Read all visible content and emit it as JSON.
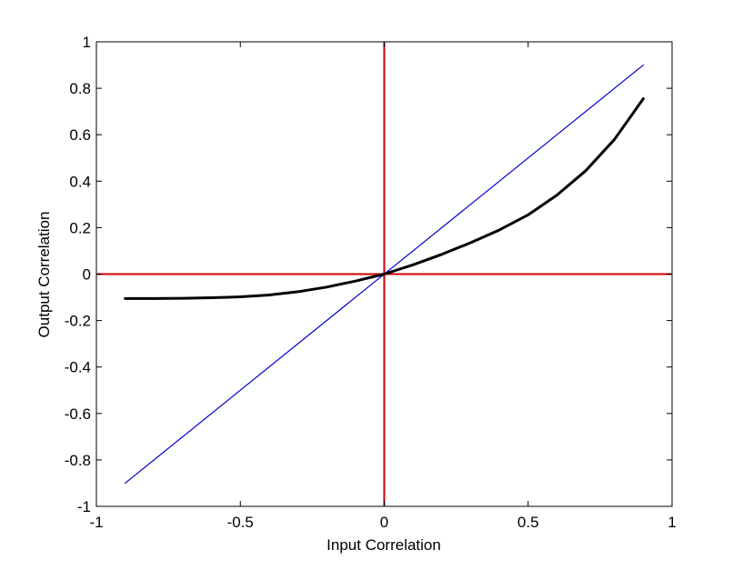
{
  "chart_data": {
    "type": "line",
    "title": "",
    "xlabel": "Input Correlation",
    "ylabel": "Output Correlation",
    "xlim": [
      -1,
      1
    ],
    "ylim": [
      -1,
      1
    ],
    "xticks": [
      -1,
      -0.5,
      0,
      0.5,
      1
    ],
    "yticks": [
      -1,
      -0.8,
      -0.6,
      -0.4,
      -0.2,
      0,
      0.2,
      0.4,
      0.6,
      0.8,
      1
    ],
    "xtick_labels": [
      "-1",
      "-0.5",
      "0",
      "0.5",
      "1"
    ],
    "ytick_labels": [
      "-1",
      "-0.8",
      "-0.6",
      "-0.4",
      "-0.2",
      "0",
      "0.2",
      "0.4",
      "0.6",
      "0.8",
      "1"
    ],
    "grid": false,
    "series": [
      {
        "color": "#0000cc",
        "style": "thin",
        "x": [
          -0.9,
          0.9
        ],
        "y": [
          -0.9,
          0.9
        ]
      },
      {
        "color": "#000000",
        "style": "thick",
        "x": [
          -0.9,
          -0.8,
          -0.7,
          -0.6,
          -0.5,
          -0.4,
          -0.3,
          -0.2,
          -0.1,
          0,
          0.1,
          0.2,
          0.3,
          0.4,
          0.5,
          0.6,
          0.7,
          0.8,
          0.9
        ],
        "y": [
          -0.105,
          -0.105,
          -0.104,
          -0.102,
          -0.098,
          -0.09,
          -0.076,
          -0.056,
          -0.03,
          0,
          0.04,
          0.085,
          0.135,
          0.19,
          0.255,
          0.34,
          0.445,
          0.58,
          0.755
        ]
      }
    ],
    "reference_lines": [
      {
        "orientation": "vertical",
        "value": 0,
        "color": "#cc0000"
      },
      {
        "orientation": "horizontal",
        "value": 0,
        "color": "#cc0000"
      }
    ]
  }
}
